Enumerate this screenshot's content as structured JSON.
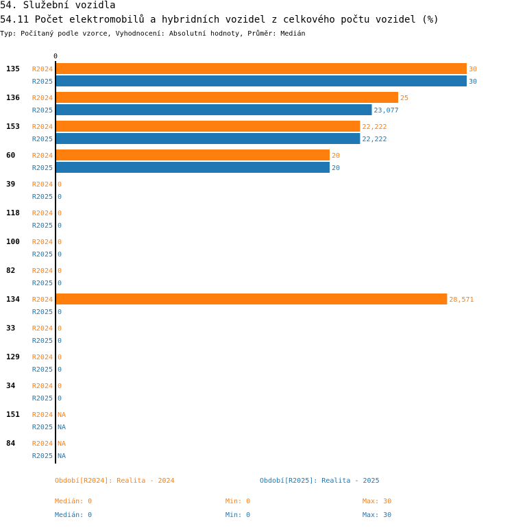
{
  "header": {
    "section": "54. Služební vozidla",
    "title": "54.11 Počet elektromobilů a hybridních vozidel z celkového počtu vozidel (%)",
    "subtitle": "Typ: Počítaný podle vzorce, Vyhodnocení: Absolutní hodnoty, Průměr: Medián"
  },
  "colors": {
    "R2024": "#ff7f0e",
    "R2025": "#1f77b4"
  },
  "chart_data": {
    "type": "bar",
    "orientation": "horizontal",
    "axis_zero_label": "0",
    "xlim": [
      0,
      30
    ],
    "categories": [
      "135",
      "136",
      "153",
      "60",
      "39",
      "118",
      "100",
      "82",
      "134",
      "33",
      "129",
      "34",
      "151",
      "84"
    ],
    "series": [
      {
        "name": "R2024",
        "values": [
          30,
          25,
          22.222,
          20,
          0,
          0,
          0,
          0,
          28.571,
          0,
          0,
          0,
          null,
          null
        ],
        "labels": [
          "30",
          "25",
          "22,222",
          "20",
          "0",
          "0",
          "0",
          "0",
          "28,571",
          "0",
          "0",
          "0",
          "NA",
          "NA"
        ]
      },
      {
        "name": "R2025",
        "values": [
          30,
          23.077,
          22.222,
          20,
          0,
          0,
          0,
          0,
          0,
          0,
          0,
          0,
          null,
          null
        ],
        "labels": [
          "30",
          "23,077",
          "22,222",
          "20",
          "0",
          "0",
          "0",
          "0",
          "0",
          "0",
          "0",
          "0",
          "NA",
          "NA"
        ]
      }
    ]
  },
  "legend": {
    "r2024": {
      "period": "Období[R2024]: Realita - 2024",
      "median": "Medián: 0",
      "min": "Min: 0",
      "max": "Max: 30"
    },
    "r2025": {
      "period": "Období[R2025]: Realita - 2025",
      "median": "Medián: 0",
      "min": "Min: 0",
      "max": "Max: 30"
    }
  }
}
